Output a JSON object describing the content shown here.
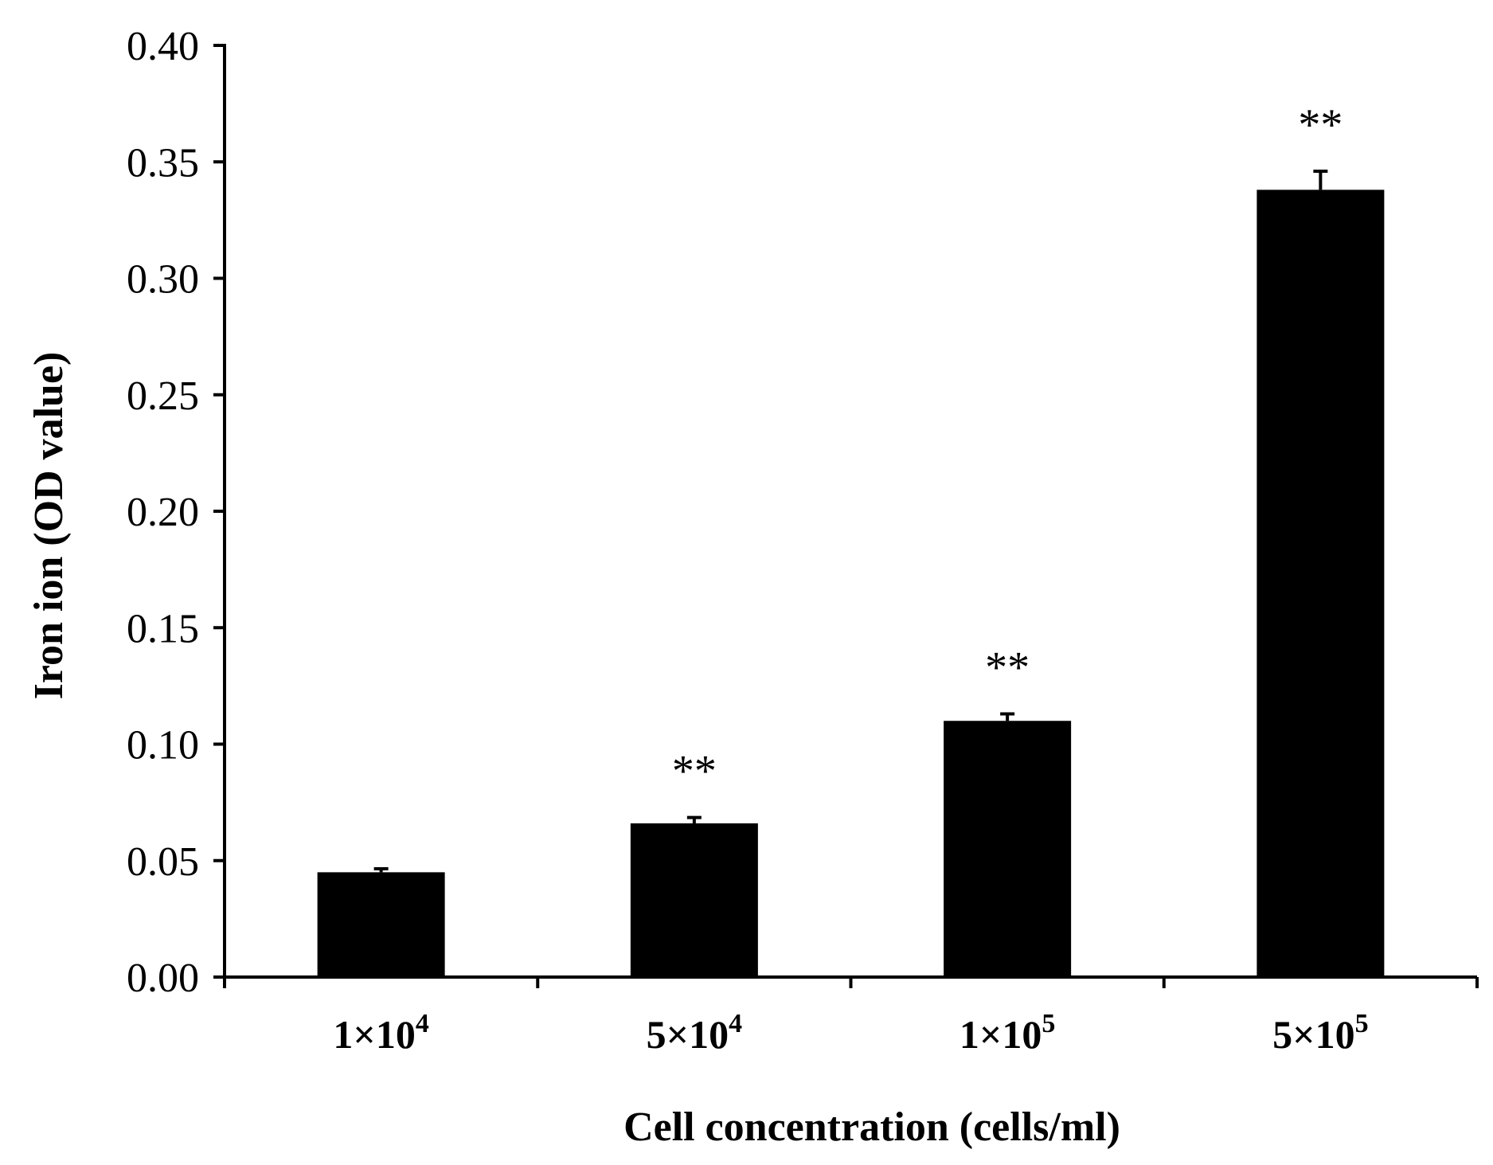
{
  "chart_data": {
    "type": "bar",
    "title": "",
    "xlabel": "Cell concentration (cells/ml)",
    "ylabel": "Iron ion (OD value)",
    "ylim": [
      0,
      0.4
    ],
    "yticks": [
      "0.00",
      "0.05",
      "0.10",
      "0.15",
      "0.20",
      "0.25",
      "0.30",
      "0.35",
      "0.40"
    ],
    "categories": [
      {
        "mantissa": "1×10",
        "exponent": "4"
      },
      {
        "mantissa": "5×10",
        "exponent": "4"
      },
      {
        "mantissa": "1×10",
        "exponent": "5"
      },
      {
        "mantissa": "5×10",
        "exponent": "5"
      }
    ],
    "values": [
      0.045,
      0.066,
      0.11,
      0.338
    ],
    "errors": [
      0.0015,
      0.0025,
      0.003,
      0.008
    ],
    "significance": [
      "",
      "**",
      "**",
      "**"
    ],
    "bar_color": "#000000",
    "grid": false,
    "legend": "none"
  }
}
